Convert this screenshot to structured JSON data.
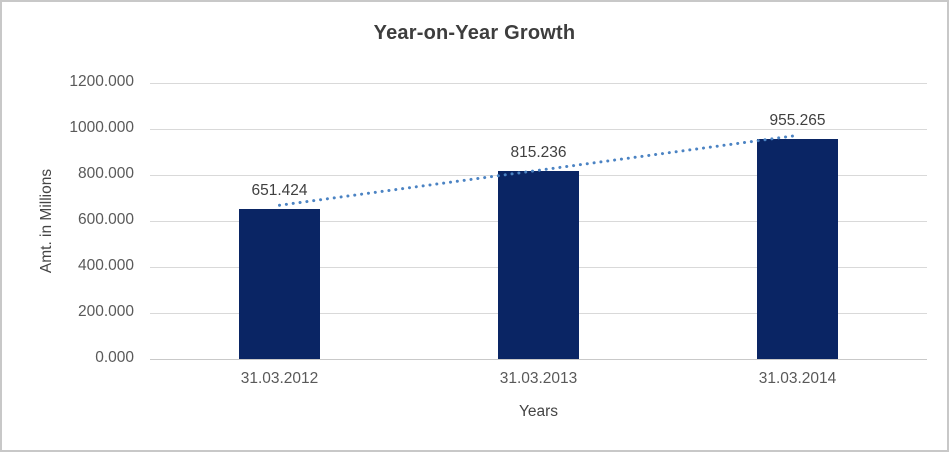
{
  "chart_data": {
    "type": "bar",
    "title": "Year-on-Year Growth",
    "xlabel": "Years",
    "ylabel": "Amt. in Millions",
    "categories": [
      "31.03.2012",
      "31.03.2013",
      "31.03.2014"
    ],
    "values": [
      651.424,
      815.236,
      955.265
    ],
    "data_labels": [
      "651.424",
      "815.236",
      "955.265"
    ],
    "ylim": [
      0,
      1200
    ],
    "ytick_step": 200,
    "ytick_labels": [
      "0.000",
      "200.000",
      "400.000",
      "600.000",
      "800.000",
      "1000.000",
      "1200.000"
    ],
    "grid": true,
    "legend": "none",
    "trendline": {
      "type": "linear",
      "style": "dotted"
    },
    "colors": {
      "bar": "#0A2564",
      "trendline": "#4B83C3",
      "gridline": "#D9D9D9",
      "axis_line": "#C9C9C9",
      "title_text": "#3D3D3D",
      "axis_title_text": "#444444",
      "tick_text": "#595959",
      "data_label_text": "#404040",
      "border": "#C8C8C8",
      "background": "#FFFFFF"
    }
  }
}
